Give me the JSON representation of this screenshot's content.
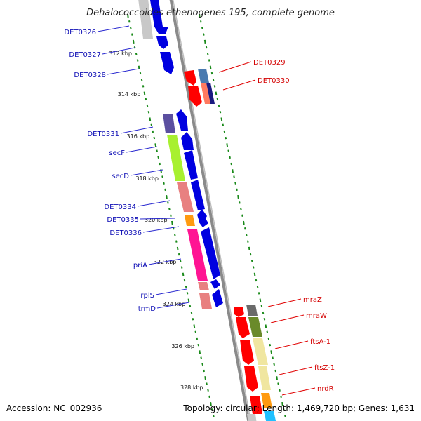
{
  "title": "Dehalococcoides ethenogenes 195, complete genome",
  "footer": {
    "accession": "Accession: NC_002936",
    "summary": "Topology: circular; Length: 1,469,720 bp; Genes: 1,631"
  },
  "colors": {
    "backbone": "#8a8a8a",
    "tick": "#1a8a1a",
    "left_label": "#0b0bb4",
    "right_label": "#d40000",
    "left_line": "#2a2ad0",
    "right_line": "#e00000"
  },
  "ticks": [
    "312 kbp",
    "314 kbp",
    "316 kbp",
    "318 kbp",
    "320 kbp",
    "322 kbp",
    "324 kbp",
    "326 kbp",
    "328 kbp"
  ],
  "left_genes": [
    "DET0326",
    "DET0327",
    "DET0328",
    "DET0331",
    "secF",
    "secD",
    "DET0334",
    "DET0335",
    "DET0336",
    "priA",
    "rplS",
    "trmD"
  ],
  "right_genes": [
    "DET0329",
    "DET0330",
    "mraZ",
    "mraW",
    "ftsA-1",
    "ftsZ-1",
    "nrdR"
  ]
}
